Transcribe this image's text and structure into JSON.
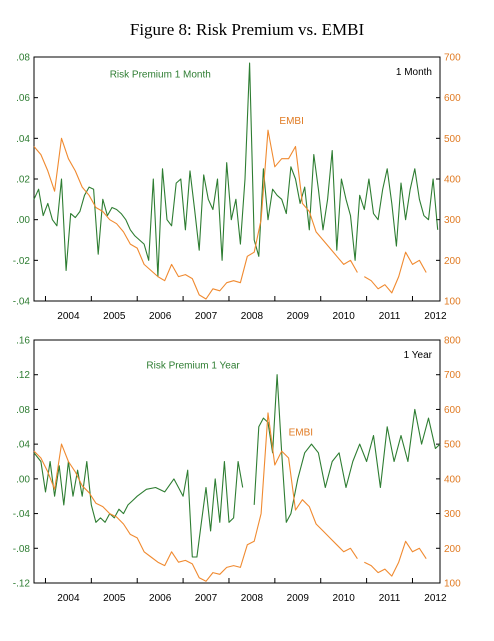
{
  "figure": {
    "title": "Figure 8: Risk Premium vs. EMBI"
  },
  "colors": {
    "risk_premium": "#2e7d32",
    "embi": "#f08a30",
    "axis": "#000000"
  },
  "chart_data": [
    {
      "type": "line",
      "panel_label": "1 Month",
      "x_ticks": [
        "2004",
        "2005",
        "2006",
        "2007",
        "2008",
        "2009",
        "2010",
        "2011",
        "2012"
      ],
      "xlim": [
        2003.75,
        2012.6
      ],
      "left_axis": {
        "ylim": [
          -0.04,
          0.08
        ],
        "ticks": [
          -0.04,
          -0.02,
          0.0,
          0.02,
          0.04,
          0.06,
          0.08
        ],
        "tick_labels": [
          "-.04",
          "-.02",
          ".00",
          ".02",
          ".04",
          ".06",
          ".08"
        ]
      },
      "right_axis": {
        "ylim": [
          100,
          700
        ],
        "ticks": [
          100,
          200,
          300,
          400,
          500,
          600,
          700
        ],
        "tick_labels": [
          "100",
          "200",
          "300",
          "400",
          "500",
          "600",
          "700"
        ]
      },
      "series": [
        {
          "name": "Risk Premium 1 Month",
          "axis": "left",
          "x": [
            2003.75,
            2003.85,
            2003.95,
            2004.05,
            2004.15,
            2004.25,
            2004.35,
            2004.45,
            2004.55,
            2004.65,
            2004.75,
            2004.85,
            2004.95,
            2005.05,
            2005.15,
            2005.25,
            2005.35,
            2005.45,
            2005.55,
            2005.65,
            2005.75,
            2005.85,
            2005.95,
            2006.05,
            2006.15,
            2006.25,
            2006.35,
            2006.45,
            2006.55,
            2006.65,
            2006.75,
            2006.85,
            2006.95,
            2007.05,
            2007.15,
            2007.25,
            2007.35,
            2007.45,
            2007.55,
            2007.65,
            2007.75,
            2007.85,
            2007.95,
            2008.05,
            2008.15,
            2008.25,
            2008.35,
            2008.45,
            2008.55,
            2008.65,
            2008.75,
            2008.85,
            2008.95,
            2009.05,
            2009.15,
            2009.25,
            2009.35,
            2009.45,
            2009.55,
            2009.65,
            2009.75,
            2009.85,
            2009.95,
            2010.05,
            2010.15,
            2010.25,
            2010.35,
            2010.45,
            2010.55,
            2010.65,
            2010.75,
            2010.85,
            2010.95,
            2011.05,
            2011.15,
            2011.25,
            2011.35,
            2011.45,
            2011.55,
            2011.65,
            2011.75,
            2011.85,
            2011.95,
            2012.05,
            2012.15,
            2012.25,
            2012.35,
            2012.45,
            2012.55
          ],
          "y": [
            0.01,
            0.015,
            0.002,
            0.008,
            0.0,
            -0.003,
            0.02,
            -0.025,
            0.003,
            0.001,
            0.004,
            0.012,
            0.016,
            0.015,
            -0.017,
            0.01,
            0.002,
            0.006,
            0.005,
            0.003,
            0.0,
            -0.005,
            -0.008,
            -0.01,
            -0.012,
            -0.02,
            0.02,
            -0.028,
            0.025,
            0.0,
            -0.003,
            0.018,
            0.02,
            -0.005,
            0.024,
            0.005,
            -0.015,
            0.022,
            0.01,
            0.005,
            0.02,
            -0.02,
            0.028,
            0.0,
            0.01,
            -0.012,
            0.02,
            0.077,
            -0.01,
            -0.018,
            0.025,
            0.0,
            0.015,
            0.012,
            0.01,
            0.003,
            0.026,
            0.02,
            0.008,
            0.016,
            -0.005,
            0.032,
            0.015,
            -0.005,
            0.01,
            0.034,
            -0.015,
            0.02,
            0.01,
            0.002,
            -0.02,
            0.012,
            0.005,
            0.02,
            0.003,
            0.0,
            0.015,
            0.025,
            0.008,
            -0.013,
            0.018,
            0.0,
            0.015,
            0.025,
            0.01,
            0.002,
            0.0,
            0.02,
            -0.005
          ]
        },
        {
          "name": "EMBI",
          "axis": "right",
          "segments": [
            {
              "x": [
                2003.75,
                2003.9,
                2004.05,
                2004.2,
                2004.35,
                2004.5,
                2004.65,
                2004.8,
                2004.95,
                2005.1,
                2005.25,
                2005.4,
                2005.55,
                2005.7,
                2005.85,
                2006.0,
                2006.15,
                2006.3,
                2006.45,
                2006.6,
                2006.75,
                2006.9,
                2007.05,
                2007.2,
                2007.35,
                2007.5,
                2007.65,
                2007.8,
                2007.95,
                2008.1,
                2008.25,
                2008.4,
                2008.55,
                2008.7,
                2008.85,
                2009.0,
                2009.15,
                2009.3,
                2009.45,
                2009.6,
                2009.75,
                2009.9,
                2010.05,
                2010.2,
                2010.35,
                2010.5,
                2010.65,
                2010.8
              ],
              "y": [
                480,
                460,
                420,
                370,
                500,
                450,
                420,
                380,
                360,
                330,
                320,
                300,
                290,
                270,
                240,
                230,
                190,
                175,
                160,
                150,
                190,
                160,
                165,
                155,
                115,
                105,
                130,
                125,
                145,
                150,
                145,
                210,
                220,
                300,
                520,
                430,
                450,
                450,
                480,
                340,
                320,
                270,
                250,
                230,
                210,
                190,
                200,
                170
              ]
            },
            {
              "x": [
                2010.95,
                2011.1,
                2011.25,
                2011.4,
                2011.55,
                2011.7,
                2011.85,
                2012.0,
                2012.15,
                2012.3
              ],
              "y": [
                160,
                150,
                130,
                140,
                120,
                160,
                220,
                190,
                200,
                170
              ]
            }
          ]
        }
      ],
      "annotations": [
        {
          "text": "Risk Premium 1 Month",
          "x": 2005.4,
          "y": 0.07,
          "axis": "left",
          "color": "risk_premium"
        },
        {
          "text": "EMBI",
          "x": 2009.1,
          "y": 0.047,
          "axis": "left",
          "color": "embi"
        }
      ]
    },
    {
      "type": "line",
      "panel_label": "1 Year",
      "x_ticks": [
        "2004",
        "2005",
        "2006",
        "2007",
        "2008",
        "2009",
        "2010",
        "2011",
        "2012"
      ],
      "xlim": [
        2003.75,
        2012.6
      ],
      "left_axis": {
        "ylim": [
          -0.12,
          0.16
        ],
        "ticks": [
          -0.12,
          -0.08,
          -0.04,
          0.0,
          0.04,
          0.08,
          0.12,
          0.16
        ],
        "tick_labels": [
          "-.12",
          "-.08",
          "-.04",
          ".00",
          ".04",
          ".08",
          ".12",
          ".16"
        ]
      },
      "right_axis": {
        "ylim": [
          100,
          800
        ],
        "ticks": [
          100,
          200,
          300,
          400,
          500,
          600,
          700,
          800
        ],
        "tick_labels": [
          "100",
          "200",
          "300",
          "400",
          "500",
          "600",
          "700",
          "800"
        ]
      },
      "series": [
        {
          "name": "Risk Premium 1 Year",
          "axis": "left",
          "segments": [
            {
              "x": [
                2003.75,
                2003.9,
                2004.0,
                2004.1,
                2004.2,
                2004.3,
                2004.4,
                2004.5,
                2004.6,
                2004.7,
                2004.8,
                2004.9,
                2005.0,
                2005.1,
                2005.2,
                2005.3,
                2005.4,
                2005.5,
                2005.6,
                2005.7,
                2005.8,
                2005.9,
                2006.0,
                2006.2,
                2006.4,
                2006.6,
                2006.8,
                2006.9,
                2007.0,
                2007.1,
                2007.2,
                2007.3,
                2007.4,
                2007.5,
                2007.6,
                2007.7,
                2007.8,
                2007.9,
                2008.0,
                2008.1,
                2008.2,
                2008.3
              ],
              "y": [
                0.03,
                0.02,
                -0.015,
                0.02,
                -0.02,
                0.015,
                -0.03,
                0.02,
                -0.02,
                0.01,
                -0.02,
                0.02,
                -0.03,
                -0.05,
                -0.045,
                -0.05,
                -0.04,
                -0.045,
                -0.035,
                -0.04,
                -0.03,
                -0.025,
                -0.02,
                -0.012,
                -0.01,
                -0.015,
                0.0,
                -0.01,
                -0.02,
                0.01,
                -0.09,
                -0.09,
                -0.05,
                -0.01,
                -0.06,
                0.0,
                -0.05,
                0.02,
                -0.05,
                -0.045,
                0.02,
                -0.01
              ]
            },
            {
              "x": [
                2008.55,
                2008.65,
                2008.75,
                2008.85,
                2008.95,
                2009.05,
                2009.15,
                2009.25,
                2009.35,
                2009.5,
                2009.65,
                2009.8,
                2009.95,
                2010.1,
                2010.25,
                2010.4,
                2010.55,
                2010.7,
                2010.85,
                2011.0,
                2011.15,
                2011.3,
                2011.45,
                2011.6,
                2011.75,
                2011.9,
                2012.05,
                2012.2,
                2012.35,
                2012.5,
                2012.6
              ],
              "y": [
                -0.03,
                0.06,
                0.07,
                0.065,
                0.03,
                0.12,
                0.03,
                -0.05,
                -0.04,
                0.0,
                0.03,
                0.04,
                0.03,
                -0.01,
                0.02,
                0.03,
                -0.01,
                0.02,
                0.04,
                0.02,
                0.05,
                -0.01,
                0.06,
                0.02,
                0.05,
                0.02,
                0.08,
                0.04,
                0.07,
                0.035,
                0.04
              ]
            }
          ]
        },
        {
          "name": "EMBI",
          "axis": "right",
          "segments": [
            {
              "x": [
                2003.75,
                2003.9,
                2004.05,
                2004.2,
                2004.35,
                2004.5,
                2004.65,
                2004.8,
                2004.95,
                2005.1,
                2005.25,
                2005.4,
                2005.55,
                2005.7,
                2005.85,
                2006.0,
                2006.15,
                2006.3,
                2006.45,
                2006.6,
                2006.75,
                2006.9,
                2007.05,
                2007.2,
                2007.35,
                2007.5,
                2007.65,
                2007.8,
                2007.95,
                2008.1,
                2008.25,
                2008.4,
                2008.55,
                2008.7,
                2008.85,
                2009.0,
                2009.15,
                2009.3,
                2009.45,
                2009.6,
                2009.75,
                2009.9,
                2010.05,
                2010.2,
                2010.35,
                2010.5,
                2010.65,
                2010.8
              ],
              "y": [
                480,
                460,
                420,
                370,
                500,
                450,
                420,
                380,
                360,
                330,
                320,
                300,
                290,
                270,
                240,
                230,
                190,
                175,
                160,
                150,
                190,
                160,
                165,
                155,
                115,
                105,
                130,
                125,
                145,
                150,
                145,
                210,
                220,
                300,
                590,
                440,
                480,
                460,
                310,
                340,
                320,
                270,
                250,
                230,
                210,
                190,
                200,
                170
              ]
            },
            {
              "x": [
                2010.95,
                2011.1,
                2011.25,
                2011.4,
                2011.55,
                2011.7,
                2011.85,
                2012.0,
                2012.15,
                2012.3
              ],
              "y": [
                160,
                150,
                130,
                140,
                120,
                160,
                220,
                190,
                200,
                170
              ]
            }
          ]
        }
      ],
      "annotations": [
        {
          "text": "Risk Premium 1 Year",
          "x": 2006.2,
          "y": 0.127,
          "axis": "left",
          "color": "risk_premium"
        },
        {
          "text": "EMBI",
          "x": 2009.3,
          "y": 0.05,
          "axis": "left",
          "color": "embi"
        }
      ]
    }
  ]
}
